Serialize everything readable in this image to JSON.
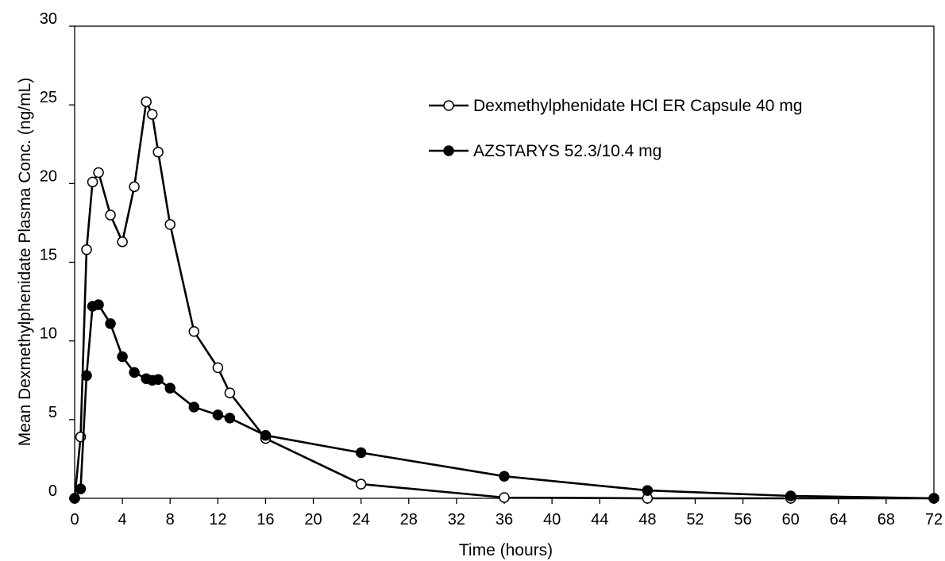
{
  "chart_data": {
    "type": "line",
    "title": "",
    "xlabel": "Time (hours)",
    "ylabel": "Mean Dexmethylphenidate Plasma Conc. (ng/mL)",
    "xlim": [
      0,
      72
    ],
    "ylim": [
      0,
      30
    ],
    "xticks": [
      0,
      4,
      8,
      12,
      16,
      20,
      24,
      28,
      32,
      36,
      40,
      44,
      48,
      52,
      56,
      60,
      64,
      68,
      72
    ],
    "yticks": [
      0,
      5,
      10,
      15,
      20,
      25,
      30
    ],
    "grid": false,
    "legend_position": "top-right",
    "series": [
      {
        "name": "Dexmethylphenidate HCl ER Capsule 40 mg",
        "marker": "open-circle",
        "color": "#000000",
        "x": [
          0,
          0.5,
          1,
          1.5,
          2,
          3,
          4,
          5,
          6,
          6.5,
          7,
          8,
          10,
          12,
          13,
          16,
          24,
          36,
          48,
          60,
          72
        ],
        "y": [
          0,
          3.9,
          15.8,
          20.1,
          20.7,
          18.0,
          16.3,
          19.8,
          25.2,
          24.4,
          22.0,
          17.4,
          10.6,
          8.3,
          6.7,
          3.8,
          0.9,
          0.05,
          0.0,
          0.0,
          0.0
        ]
      },
      {
        "name": "AZSTARYS 52.3/10.4 mg",
        "marker": "filled-circle",
        "color": "#000000",
        "x": [
          0,
          0.5,
          1,
          1.5,
          2,
          3,
          4,
          5,
          6,
          6.5,
          7,
          8,
          10,
          12,
          13,
          16,
          24,
          36,
          48,
          60,
          72
        ],
        "y": [
          0,
          0.6,
          7.8,
          12.2,
          12.3,
          11.1,
          9.0,
          8.0,
          7.6,
          7.5,
          7.55,
          7.0,
          5.8,
          5.3,
          5.1,
          4.0,
          2.9,
          1.4,
          0.5,
          0.15,
          0.0
        ]
      }
    ]
  }
}
